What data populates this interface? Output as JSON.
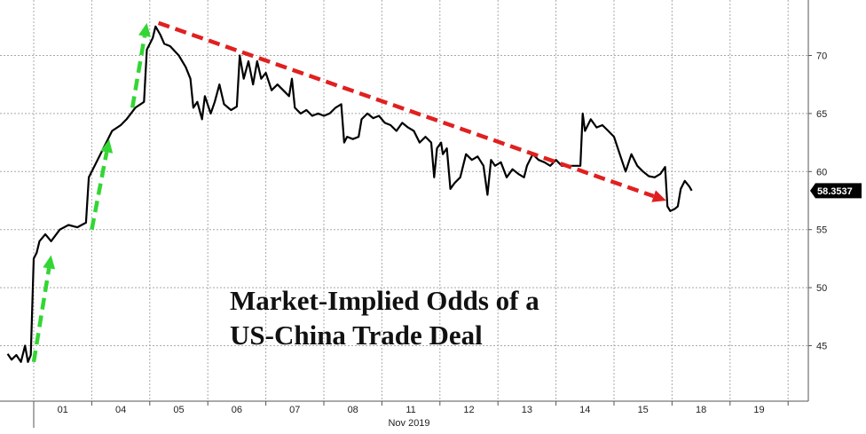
{
  "chart_data": {
    "type": "line",
    "title": "Market-Implied Odds of a US-China Trade Deal",
    "annotation_lines": [
      "Market-Implied Odds of a",
      "US-China Trade Deal"
    ],
    "xlabel": "Nov 2019",
    "ylabel": "",
    "x_tick_labels": [
      "01",
      "04",
      "05",
      "06",
      "07",
      "08",
      "11",
      "12",
      "13",
      "14",
      "15",
      "18",
      "19"
    ],
    "ylim": [
      40,
      74
    ],
    "y_ticks": [
      45,
      50,
      55,
      60,
      65,
      70
    ],
    "grid": true,
    "last_value_label": "58.3537",
    "colors": {
      "line": "#000000",
      "grid": "#a9a9a9",
      "up_arrows": "#33d633",
      "down_arrow": "#e02020",
      "last_label_bg": "#000000"
    },
    "series": [
      {
        "name": "Market-Implied Odds",
        "points": [
          [
            -0.45,
            44.3
          ],
          [
            -0.38,
            43.8
          ],
          [
            -0.3,
            44.2
          ],
          [
            -0.22,
            43.6
          ],
          [
            -0.15,
            45.0
          ],
          [
            -0.1,
            43.6
          ],
          [
            -0.05,
            44.2
          ],
          [
            0.0,
            52.5
          ],
          [
            0.05,
            53.0
          ],
          [
            0.1,
            54.0
          ],
          [
            0.2,
            54.6
          ],
          [
            0.3,
            54.0
          ],
          [
            0.45,
            55.0
          ],
          [
            0.6,
            55.4
          ],
          [
            0.75,
            55.2
          ],
          [
            0.9,
            55.6
          ],
          [
            0.95,
            59.5
          ],
          [
            1.05,
            60.5
          ],
          [
            1.15,
            61.5
          ],
          [
            1.25,
            62.5
          ],
          [
            1.35,
            63.5
          ],
          [
            1.5,
            64.0
          ],
          [
            1.6,
            64.5
          ],
          [
            1.75,
            65.5
          ],
          [
            1.9,
            66.0
          ],
          [
            1.95,
            70.5
          ],
          [
            2.05,
            71.5
          ],
          [
            2.1,
            72.5
          ],
          [
            2.18,
            71.8
          ],
          [
            2.25,
            71.0
          ],
          [
            2.35,
            70.8
          ],
          [
            2.5,
            70.0
          ],
          [
            2.62,
            69.0
          ],
          [
            2.7,
            68.0
          ],
          [
            2.75,
            65.5
          ],
          [
            2.82,
            66.0
          ],
          [
            2.9,
            64.5
          ],
          [
            2.95,
            66.5
          ],
          [
            3.05,
            65.0
          ],
          [
            3.12,
            66.0
          ],
          [
            3.2,
            67.5
          ],
          [
            3.28,
            65.8
          ],
          [
            3.4,
            65.3
          ],
          [
            3.5,
            65.6
          ],
          [
            3.55,
            70.0
          ],
          [
            3.62,
            68.0
          ],
          [
            3.7,
            69.5
          ],
          [
            3.78,
            67.5
          ],
          [
            3.85,
            69.5
          ],
          [
            3.92,
            68.0
          ],
          [
            4.0,
            68.5
          ],
          [
            4.1,
            67.0
          ],
          [
            4.2,
            67.5
          ],
          [
            4.3,
            67.0
          ],
          [
            4.4,
            66.5
          ],
          [
            4.45,
            68.0
          ],
          [
            4.5,
            65.5
          ],
          [
            4.6,
            65.0
          ],
          [
            4.7,
            65.3
          ],
          [
            4.8,
            64.8
          ],
          [
            4.9,
            65.0
          ],
          [
            5.0,
            64.8
          ],
          [
            5.1,
            65.0
          ],
          [
            5.2,
            65.5
          ],
          [
            5.3,
            65.8
          ],
          [
            5.35,
            62.5
          ],
          [
            5.4,
            63.0
          ],
          [
            5.5,
            62.8
          ],
          [
            5.6,
            63.0
          ],
          [
            5.65,
            64.5
          ],
          [
            5.75,
            65.0
          ],
          [
            5.85,
            64.6
          ],
          [
            5.95,
            64.8
          ],
          [
            6.05,
            64.2
          ],
          [
            6.15,
            64.0
          ],
          [
            6.25,
            63.5
          ],
          [
            6.35,
            64.2
          ],
          [
            6.45,
            63.8
          ],
          [
            6.55,
            63.5
          ],
          [
            6.65,
            62.5
          ],
          [
            6.75,
            63.0
          ],
          [
            6.85,
            62.5
          ],
          [
            6.9,
            59.5
          ],
          [
            6.95,
            62.0
          ],
          [
            7.02,
            62.5
          ],
          [
            7.05,
            61.5
          ],
          [
            7.12,
            62.0
          ],
          [
            7.18,
            58.5
          ],
          [
            7.25,
            59.0
          ],
          [
            7.35,
            59.5
          ],
          [
            7.45,
            61.5
          ],
          [
            7.55,
            61.0
          ],
          [
            7.65,
            61.3
          ],
          [
            7.75,
            60.5
          ],
          [
            7.82,
            58.0
          ],
          [
            7.88,
            61.0
          ],
          [
            7.95,
            60.5
          ],
          [
            8.05,
            60.8
          ],
          [
            8.15,
            59.5
          ],
          [
            8.25,
            60.2
          ],
          [
            8.35,
            59.8
          ],
          [
            8.45,
            59.5
          ],
          [
            8.5,
            60.5
          ],
          [
            8.6,
            61.5
          ],
          [
            8.7,
            61.0
          ],
          [
            8.8,
            60.8
          ],
          [
            8.9,
            60.5
          ],
          [
            9.0,
            61.0
          ],
          [
            9.1,
            60.5
          ],
          [
            9.25,
            60.5
          ],
          [
            9.42,
            60.5
          ],
          [
            9.46,
            65.0
          ],
          [
            9.5,
            63.5
          ],
          [
            9.6,
            64.5
          ],
          [
            9.7,
            63.8
          ],
          [
            9.8,
            64.0
          ],
          [
            9.9,
            63.5
          ],
          [
            10.0,
            63.0
          ],
          [
            10.1,
            61.5
          ],
          [
            10.2,
            60.0
          ],
          [
            10.3,
            61.5
          ],
          [
            10.4,
            60.5
          ],
          [
            10.5,
            60.0
          ],
          [
            10.6,
            59.6
          ],
          [
            10.7,
            59.5
          ],
          [
            10.8,
            59.8
          ],
          [
            10.88,
            60.4
          ],
          [
            10.92,
            57.0
          ],
          [
            10.97,
            56.6
          ],
          [
            11.05,
            56.8
          ],
          [
            11.1,
            57.0
          ],
          [
            11.15,
            58.5
          ],
          [
            11.22,
            59.2
          ],
          [
            11.3,
            58.7
          ],
          [
            11.34,
            58.3537
          ]
        ]
      }
    ],
    "annotations": [
      {
        "type": "arrow",
        "direction": "up",
        "color": "green",
        "from": [
          0.0,
          43.6
        ],
        "to": [
          0.3,
          52.8
        ]
      },
      {
        "type": "arrow",
        "direction": "up",
        "color": "green",
        "from": [
          1.0,
          55.0
        ],
        "to": [
          1.3,
          62.8
        ]
      },
      {
        "type": "arrow",
        "direction": "up",
        "color": "green",
        "from": [
          1.7,
          65.5
        ],
        "to": [
          1.95,
          72.8
        ]
      },
      {
        "type": "arrow",
        "direction": "down",
        "color": "red",
        "from": [
          2.15,
          72.8
        ],
        "to": [
          10.9,
          57.5
        ]
      }
    ]
  }
}
